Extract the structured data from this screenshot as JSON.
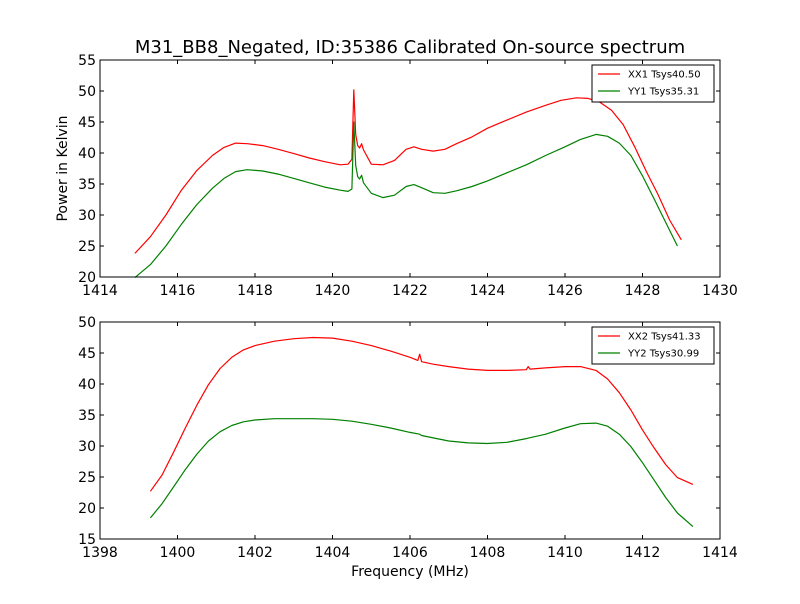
{
  "figure": {
    "title": "M31_BB8_Negated, ID:35386 Calibrated On-source spectrum",
    "ylabel": "Power in Kelvin",
    "xlabel": "Frequency (MHz)"
  },
  "chart_data": [
    {
      "type": "line",
      "title": "M31_BB8_Negated, ID:35386 Calibrated On-source spectrum",
      "xlabel": "",
      "ylabel": "Power in Kelvin",
      "xlim": [
        1414,
        1430
      ],
      "ylim": [
        20,
        55
      ],
      "xticks": [
        "1414",
        "1416",
        "1418",
        "1420",
        "1422",
        "1424",
        "1426",
        "1428",
        "1430"
      ],
      "yticks": [
        "20",
        "25",
        "30",
        "35",
        "40",
        "45",
        "50",
        "55"
      ],
      "legend_position": "top-right",
      "grid": false,
      "series": [
        {
          "name": "XX1 Tsys40.50",
          "color": "#ff0000",
          "points": [
            [
              1414.9,
              23.8
            ],
            [
              1415.3,
              26.5
            ],
            [
              1415.7,
              30.0
            ],
            [
              1416.1,
              34.0
            ],
            [
              1416.5,
              37.2
            ],
            [
              1416.9,
              39.6
            ],
            [
              1417.2,
              40.9
            ],
            [
              1417.5,
              41.6
            ],
            [
              1417.8,
              41.5
            ],
            [
              1418.2,
              41.2
            ],
            [
              1418.6,
              40.6
            ],
            [
              1419.0,
              39.9
            ],
            [
              1419.4,
              39.2
            ],
            [
              1419.8,
              38.6
            ],
            [
              1420.2,
              38.1
            ],
            [
              1420.4,
              38.2
            ],
            [
              1420.5,
              39.0
            ],
            [
              1420.55,
              50.2
            ],
            [
              1420.6,
              43.0
            ],
            [
              1420.65,
              41.2
            ],
            [
              1420.7,
              40.8
            ],
            [
              1420.75,
              41.5
            ],
            [
              1420.8,
              40.5
            ],
            [
              1421.0,
              38.2
            ],
            [
              1421.3,
              38.1
            ],
            [
              1421.6,
              38.8
            ],
            [
              1421.9,
              40.6
            ],
            [
              1422.1,
              41.0
            ],
            [
              1422.3,
              40.6
            ],
            [
              1422.6,
              40.3
            ],
            [
              1422.9,
              40.6
            ],
            [
              1423.2,
              41.5
            ],
            [
              1423.6,
              42.6
            ],
            [
              1424.0,
              44.0
            ],
            [
              1424.5,
              45.3
            ],
            [
              1425.0,
              46.6
            ],
            [
              1425.5,
              47.7
            ],
            [
              1425.9,
              48.5
            ],
            [
              1426.3,
              48.9
            ],
            [
              1426.6,
              48.8
            ],
            [
              1426.9,
              48.2
            ],
            [
              1427.2,
              46.9
            ],
            [
              1427.5,
              44.6
            ],
            [
              1427.8,
              41.0
            ],
            [
              1428.1,
              37.0
            ],
            [
              1428.4,
              33.3
            ],
            [
              1428.7,
              29.2
            ],
            [
              1429.0,
              26.0
            ]
          ]
        },
        {
          "name": "YY1 Tsys35.31",
          "color": "#008000",
          "points": [
            [
              1414.9,
              19.9
            ],
            [
              1415.3,
              22.0
            ],
            [
              1415.7,
              25.0
            ],
            [
              1416.1,
              28.5
            ],
            [
              1416.5,
              31.7
            ],
            [
              1416.9,
              34.3
            ],
            [
              1417.2,
              35.9
            ],
            [
              1417.5,
              37.0
            ],
            [
              1417.8,
              37.3
            ],
            [
              1418.2,
              37.1
            ],
            [
              1418.6,
              36.6
            ],
            [
              1419.0,
              35.9
            ],
            [
              1419.4,
              35.2
            ],
            [
              1419.8,
              34.5
            ],
            [
              1420.2,
              34.0
            ],
            [
              1420.4,
              33.8
            ],
            [
              1420.5,
              34.2
            ],
            [
              1420.55,
              45.0
            ],
            [
              1420.6,
              38.0
            ],
            [
              1420.65,
              36.2
            ],
            [
              1420.7,
              35.8
            ],
            [
              1420.75,
              36.4
            ],
            [
              1420.8,
              35.2
            ],
            [
              1421.0,
              33.5
            ],
            [
              1421.3,
              32.8
            ],
            [
              1421.6,
              33.2
            ],
            [
              1421.9,
              34.6
            ],
            [
              1422.1,
              34.9
            ],
            [
              1422.3,
              34.4
            ],
            [
              1422.6,
              33.6
            ],
            [
              1422.9,
              33.5
            ],
            [
              1423.2,
              33.9
            ],
            [
              1423.6,
              34.6
            ],
            [
              1424.0,
              35.5
            ],
            [
              1424.5,
              36.8
            ],
            [
              1425.0,
              38.1
            ],
            [
              1425.5,
              39.6
            ],
            [
              1426.0,
              41.0
            ],
            [
              1426.4,
              42.2
            ],
            [
              1426.8,
              43.0
            ],
            [
              1427.1,
              42.7
            ],
            [
              1427.4,
              41.6
            ],
            [
              1427.7,
              39.6
            ],
            [
              1428.0,
              36.3
            ],
            [
              1428.3,
              32.6
            ],
            [
              1428.6,
              28.8
            ],
            [
              1428.9,
              25.0
            ]
          ]
        }
      ]
    },
    {
      "type": "line",
      "title": "",
      "xlabel": "Frequency (MHz)",
      "ylabel": "",
      "xlim": [
        1398,
        1414
      ],
      "ylim": [
        15,
        50
      ],
      "xticks": [
        "1398",
        "1400",
        "1402",
        "1404",
        "1406",
        "1408",
        "1410",
        "1412",
        "1414"
      ],
      "yticks": [
        "15",
        "20",
        "25",
        "30",
        "35",
        "40",
        "45",
        "50"
      ],
      "legend_position": "top-right",
      "grid": false,
      "series": [
        {
          "name": "XX2 Tsys41.33",
          "color": "#ff0000",
          "points": [
            [
              1399.3,
              22.7
            ],
            [
              1399.6,
              25.3
            ],
            [
              1399.9,
              29.0
            ],
            [
              1400.2,
              32.9
            ],
            [
              1400.5,
              36.6
            ],
            [
              1400.8,
              39.9
            ],
            [
              1401.1,
              42.5
            ],
            [
              1401.4,
              44.3
            ],
            [
              1401.7,
              45.5
            ],
            [
              1402.0,
              46.2
            ],
            [
              1402.5,
              46.9
            ],
            [
              1403.0,
              47.3
            ],
            [
              1403.5,
              47.5
            ],
            [
              1404.0,
              47.4
            ],
            [
              1404.5,
              46.9
            ],
            [
              1405.0,
              46.2
            ],
            [
              1405.5,
              45.3
            ],
            [
              1406.0,
              44.3
            ],
            [
              1406.2,
              43.8
            ],
            [
              1406.25,
              44.8
            ],
            [
              1406.3,
              43.6
            ],
            [
              1406.6,
              43.2
            ],
            [
              1407.0,
              42.8
            ],
            [
              1407.5,
              42.4
            ],
            [
              1408.0,
              42.2
            ],
            [
              1408.5,
              42.2
            ],
            [
              1409.0,
              42.3
            ],
            [
              1409.05,
              42.8
            ],
            [
              1409.1,
              42.4
            ],
            [
              1409.5,
              42.6
            ],
            [
              1410.0,
              42.8
            ],
            [
              1410.4,
              42.8
            ],
            [
              1410.8,
              42.2
            ],
            [
              1411.1,
              40.8
            ],
            [
              1411.4,
              38.6
            ],
            [
              1411.7,
              35.8
            ],
            [
              1412.0,
              32.6
            ],
            [
              1412.3,
              29.7
            ],
            [
              1412.6,
              27.0
            ],
            [
              1412.9,
              24.9
            ],
            [
              1413.3,
              23.8
            ]
          ]
        },
        {
          "name": "YY2 Tsys30.99",
          "color": "#008000",
          "points": [
            [
              1399.3,
              18.4
            ],
            [
              1399.6,
              20.7
            ],
            [
              1399.9,
              23.4
            ],
            [
              1400.2,
              26.2
            ],
            [
              1400.5,
              28.7
            ],
            [
              1400.8,
              30.8
            ],
            [
              1401.1,
              32.3
            ],
            [
              1401.4,
              33.3
            ],
            [
              1401.7,
              33.9
            ],
            [
              1402.0,
              34.2
            ],
            [
              1402.5,
              34.4
            ],
            [
              1403.0,
              34.4
            ],
            [
              1403.5,
              34.4
            ],
            [
              1404.0,
              34.3
            ],
            [
              1404.5,
              34.0
            ],
            [
              1405.0,
              33.5
            ],
            [
              1405.5,
              32.9
            ],
            [
              1406.0,
              32.2
            ],
            [
              1406.25,
              31.9
            ],
            [
              1406.3,
              31.7
            ],
            [
              1406.6,
              31.3
            ],
            [
              1407.0,
              30.8
            ],
            [
              1407.5,
              30.5
            ],
            [
              1408.0,
              30.4
            ],
            [
              1408.5,
              30.6
            ],
            [
              1409.0,
              31.2
            ],
            [
              1409.5,
              31.9
            ],
            [
              1410.0,
              32.9
            ],
            [
              1410.4,
              33.6
            ],
            [
              1410.8,
              33.7
            ],
            [
              1411.1,
              33.2
            ],
            [
              1411.4,
              31.9
            ],
            [
              1411.7,
              29.9
            ],
            [
              1412.0,
              27.3
            ],
            [
              1412.3,
              24.5
            ],
            [
              1412.6,
              21.7
            ],
            [
              1412.9,
              19.2
            ],
            [
              1413.3,
              17.0
            ]
          ]
        }
      ]
    }
  ]
}
